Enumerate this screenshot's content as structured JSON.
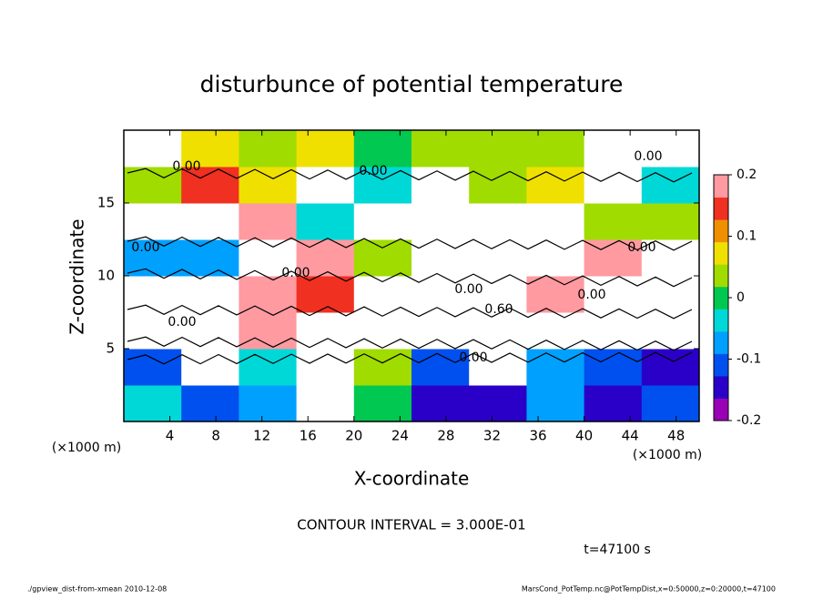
{
  "chart_data": {
    "type": "heatmap",
    "title": "disturbunce of potential temperature",
    "x_label": "X-coordinate",
    "y_label": "Z-coordinate",
    "x_unit_left": "(×1000 m)",
    "x_unit_right": "(×1000 m)",
    "x": [
      2.5,
      7.5,
      12.5,
      17.5,
      22.5,
      27.5,
      32.5,
      37.5,
      42.5,
      47.5
    ],
    "y": [
      1.25,
      3.75,
      6.25,
      8.75,
      11.25,
      13.75,
      16.25,
      18.75
    ],
    "values": [
      [
        -0.04,
        -0.1,
        -0.06,
        0.3,
        0.0,
        -0.16,
        -0.14,
        -0.08,
        -0.14,
        -0.12
      ],
      [
        -0.1,
        0.3,
        -0.02,
        0.3,
        0.04,
        -0.12,
        0.3,
        -0.06,
        -0.12,
        -0.14
      ],
      [
        0.3,
        0.3,
        0.18,
        0.3,
        0.3,
        0.3,
        0.3,
        0.3,
        0.3,
        0.3
      ],
      [
        0.3,
        0.3,
        0.18,
        0.16,
        0.3,
        0.3,
        0.3,
        0.18,
        0.3,
        0.3
      ],
      [
        -0.06,
        -0.08,
        0.3,
        0.18,
        0.02,
        0.3,
        0.3,
        0.3,
        0.18,
        0.3
      ],
      [
        0.3,
        0.3,
        0.18,
        -0.04,
        0.3,
        0.3,
        0.3,
        0.3,
        0.04,
        0.02
      ],
      [
        0.02,
        0.16,
        0.06,
        0.3,
        -0.04,
        0.3,
        0.02,
        0.06,
        0.3,
        -0.02
      ],
      [
        0.3,
        0.06,
        0.02,
        0.08,
        0.0,
        0.02,
        0.04,
        0.02,
        0.3,
        0.3
      ]
    ],
    "xlim": [
      0,
      50
    ],
    "xticks": [
      4,
      8,
      12,
      16,
      20,
      24,
      28,
      32,
      36,
      40,
      44,
      48
    ],
    "ylim": [
      0,
      20
    ],
    "yticks": [
      5,
      10,
      15
    ],
    "colorbar": {
      "lim": [
        -0.2,
        0.2
      ],
      "ticks": [
        0.2,
        0.1,
        0,
        -0.1,
        -0.2
      ],
      "colors": [
        "#9a00b4",
        "#2a00c8",
        "#0050f0",
        "#00a0ff",
        "#00d8d8",
        "#00c850",
        "#a0dc00",
        "#f0e000",
        "#f09000",
        "#f03020",
        "#ff9aa0"
      ],
      "out_of_range_color": "#ffffff"
    },
    "contour_labels": [
      "0.00",
      "0.00",
      "0.00",
      "0.00",
      "0.00",
      "0.00",
      "0.00",
      "0.60",
      "0.00",
      "0.00",
      "0.00"
    ],
    "contour_interval": "CONTOUR INTERVAL = 3.000E-01",
    "time_label": "t=47100 s",
    "footer_left": "./gpview_dist-from-xmean  2010-12-08",
    "footer_right": "MarsCond_PotTemp.nc@PotTempDist,x=0:50000,z=0:20000,t=47100"
  }
}
